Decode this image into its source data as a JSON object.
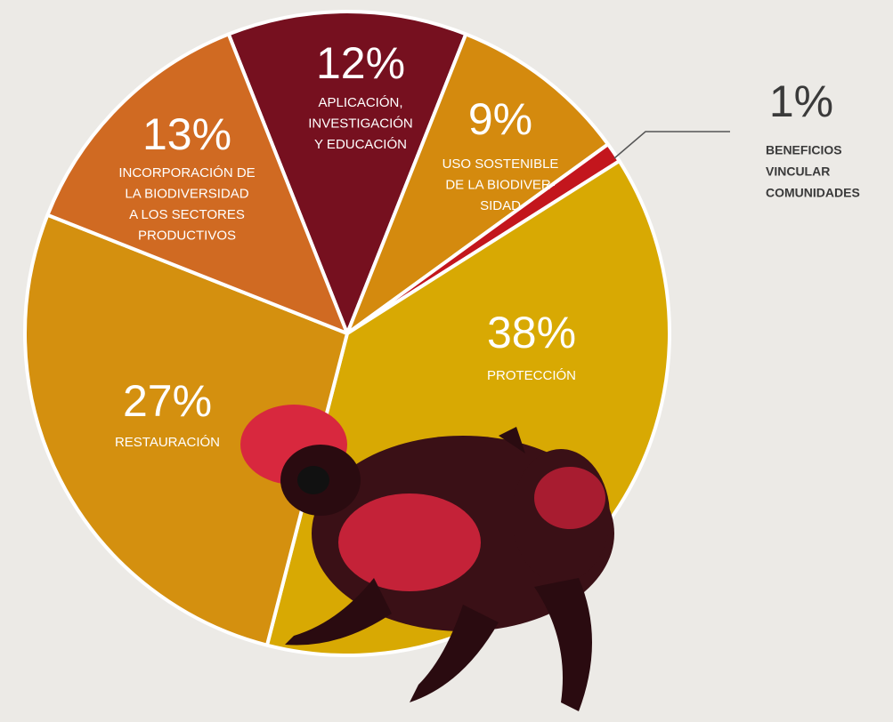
{
  "chart_data": {
    "type": "pie",
    "categories": [
      [
        "APLICACIÓN,",
        "INVESTIGACIÓN",
        "Y EDUCACIÓN"
      ],
      [
        "USO SOSTENIBLE",
        "DE LA BIODIVER-",
        "SIDAD"
      ],
      [
        "BENEFICIOS",
        "VINCULAR",
        "COMUNIDADES"
      ],
      [
        "PROTECCIÓN"
      ],
      [
        "RESTAURACIÓN"
      ],
      [
        "INCORPORACIÓN DE",
        "LA BIODIVERSIDAD",
        "A LOS SECTORES",
        "PRODUCTIVOS"
      ]
    ],
    "values": [
      12,
      9,
      1,
      38,
      27,
      13
    ],
    "value_labels": [
      "12%",
      "9%",
      "1%",
      "38%",
      "27%",
      "13%"
    ],
    "colors": [
      "#76101f",
      "#d48a0e",
      "#c3161d",
      "#d8a903",
      "#d4900f",
      "#d06a22"
    ]
  }
}
